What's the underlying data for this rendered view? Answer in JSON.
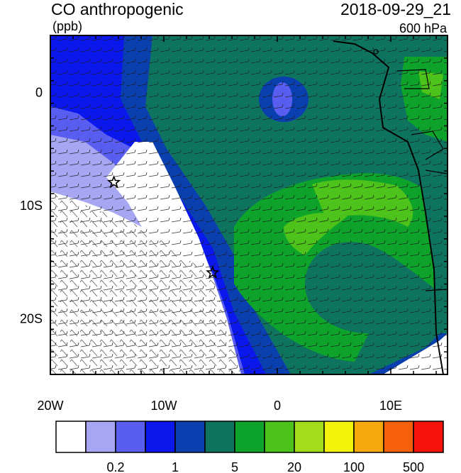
{
  "header": {
    "title": "CO anthropogenic",
    "timestamp": "2018-09-29_21",
    "units": "(ppb)",
    "level": "600 hPa"
  },
  "map": {
    "region": "Southeast Atlantic / West Africa",
    "lon_range": [
      -20,
      15
    ],
    "lat_range": [
      -25,
      5
    ],
    "lon_ticks": [
      {
        "value": -20,
        "label": "20W"
      },
      {
        "value": -10,
        "label": "10W"
      },
      {
        "value": 0,
        "label": "0"
      },
      {
        "value": 10,
        "label": "10E"
      }
    ],
    "lat_ticks": [
      {
        "value": 0,
        "label": "0"
      },
      {
        "value": -10,
        "label": "10S"
      },
      {
        "value": -20,
        "label": "20S"
      }
    ],
    "markers": [
      {
        "name": "star-marker-ascension",
        "lon": -14.4,
        "lat": -8.0
      },
      {
        "name": "star-marker-st-helena",
        "lon": -5.7,
        "lat": -16.0
      }
    ],
    "overlay": "wind barbs"
  },
  "colorbar": {
    "colors": [
      "#ffffff",
      "#a6a6f2",
      "#5a5ef0",
      "#0a18ee",
      "#0a3fb0",
      "#0e7460",
      "#0ea32a",
      "#4cc21a",
      "#a4dc1a",
      "#f2f20a",
      "#f7a80a",
      "#f7600a",
      "#f7140a"
    ],
    "labels": [
      "0.2",
      "1",
      "5",
      "20",
      "100",
      "500"
    ]
  }
}
